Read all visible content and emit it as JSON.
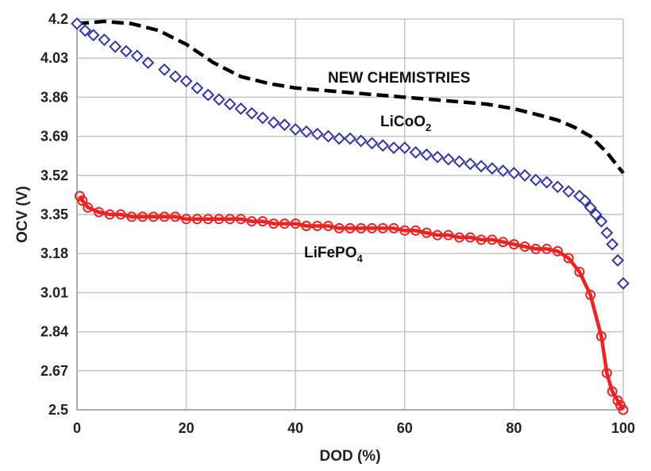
{
  "chart_data": {
    "type": "line",
    "title": "",
    "xlabel": "DOD (%)",
    "ylabel": "OCV (V)",
    "xlim": [
      0,
      100
    ],
    "ylim": [
      2.5,
      4.2
    ],
    "x_ticks": [
      "0",
      "20",
      "40",
      "60",
      "80",
      "100"
    ],
    "y_ticks": [
      "4.2",
      "4.03",
      "3.86",
      "3.69",
      "3.52",
      "3.35",
      "3.18",
      "3.01",
      "2.84",
      "2.67",
      "2.5"
    ],
    "grid": true,
    "annotations": {
      "new_chemistries": "NEW CHEMISTRIES",
      "licoo2_main": "LiCoO",
      "licoo2_sub": "2",
      "lifepo4_main": "LiFePO",
      "lifepo4_sub": "4"
    },
    "series": [
      {
        "name": "NEW CHEMISTRIES",
        "style": "dashed",
        "color": "#000000",
        "x": [
          0,
          5,
          10,
          15,
          20,
          25,
          30,
          35,
          40,
          45,
          50,
          55,
          60,
          65,
          70,
          75,
          80,
          85,
          88,
          91,
          94,
          97,
          100
        ],
        "y": [
          4.18,
          4.19,
          4.18,
          4.15,
          4.09,
          4.01,
          3.95,
          3.92,
          3.9,
          3.89,
          3.88,
          3.87,
          3.86,
          3.85,
          3.84,
          3.83,
          3.81,
          3.78,
          3.76,
          3.73,
          3.69,
          3.62,
          3.53
        ]
      },
      {
        "name": "LiCoO2",
        "style": "diamonds",
        "color": "#3333aa",
        "x": [
          0,
          1.5,
          3,
          5,
          7,
          9,
          11,
          13,
          16,
          18,
          20,
          22,
          24,
          26,
          28,
          30,
          32,
          34,
          36,
          38,
          40,
          42,
          44,
          46,
          48,
          50,
          52,
          54,
          56,
          58,
          60,
          62,
          64,
          66,
          68,
          70,
          72,
          74,
          76,
          78,
          80,
          82,
          84,
          86,
          88,
          90,
          92,
          93,
          94,
          95,
          96,
          97,
          98,
          99,
          100
        ],
        "y": [
          4.18,
          4.15,
          4.13,
          4.11,
          4.08,
          4.06,
          4.04,
          4.01,
          3.98,
          3.95,
          3.93,
          3.9,
          3.87,
          3.85,
          3.83,
          3.81,
          3.79,
          3.77,
          3.75,
          3.74,
          3.72,
          3.71,
          3.7,
          3.69,
          3.68,
          3.68,
          3.67,
          3.66,
          3.65,
          3.64,
          3.64,
          3.62,
          3.61,
          3.6,
          3.59,
          3.58,
          3.57,
          3.56,
          3.55,
          3.54,
          3.53,
          3.52,
          3.5,
          3.49,
          3.47,
          3.45,
          3.43,
          3.41,
          3.38,
          3.35,
          3.32,
          3.27,
          3.22,
          3.15,
          3.05
        ]
      },
      {
        "name": "LiFePO4",
        "style": "line-circles",
        "color": "#ee2222",
        "x": [
          0.5,
          1,
          2,
          4,
          6,
          8,
          10,
          12,
          14,
          16,
          18,
          20,
          22,
          24,
          26,
          28,
          30,
          32,
          34,
          36,
          38,
          40,
          42,
          44,
          46,
          48,
          50,
          52,
          54,
          56,
          58,
          60,
          62,
          64,
          66,
          68,
          70,
          72,
          74,
          76,
          78,
          80,
          82,
          84,
          86,
          88,
          90,
          92,
          94,
          96,
          97,
          98,
          99,
          99.5,
          100
        ],
        "y": [
          3.43,
          3.41,
          3.38,
          3.36,
          3.35,
          3.35,
          3.34,
          3.34,
          3.34,
          3.34,
          3.34,
          3.33,
          3.33,
          3.33,
          3.33,
          3.33,
          3.33,
          3.32,
          3.32,
          3.31,
          3.31,
          3.31,
          3.3,
          3.3,
          3.3,
          3.29,
          3.29,
          3.29,
          3.29,
          3.29,
          3.29,
          3.28,
          3.28,
          3.27,
          3.26,
          3.26,
          3.25,
          3.25,
          3.24,
          3.24,
          3.23,
          3.22,
          3.21,
          3.2,
          3.2,
          3.19,
          3.16,
          3.1,
          3.0,
          2.82,
          2.66,
          2.58,
          2.54,
          2.52,
          2.5
        ]
      }
    ]
  }
}
